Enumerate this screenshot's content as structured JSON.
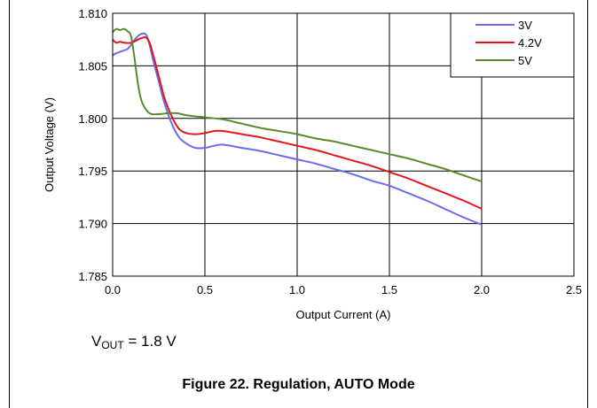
{
  "chart_data": {
    "type": "line",
    "title": "",
    "xlabel": "Output Current (A)",
    "ylabel": "Output Voltage (V)",
    "xlim": [
      0,
      2.5
    ],
    "ylim": [
      1.785,
      1.81
    ],
    "xticks": [
      0.0,
      0.5,
      1.0,
      1.5,
      2.0,
      2.5
    ],
    "xtick_labels": [
      "0.0",
      "0.5",
      "1.0",
      "1.5",
      "2.0",
      "2.5"
    ],
    "yticks": [
      1.785,
      1.79,
      1.795,
      1.8,
      1.805,
      1.81
    ],
    "ytick_labels": [
      "1.785",
      "1.790",
      "1.795",
      "1.800",
      "1.805",
      "1.810"
    ],
    "grid": true,
    "legend_position": "top-right",
    "series": [
      {
        "name": "3V",
        "color": "#6b6bf0",
        "points": [
          [
            0.0,
            1.806
          ],
          [
            0.02,
            1.8062
          ],
          [
            0.05,
            1.8064
          ],
          [
            0.08,
            1.8066
          ],
          [
            0.1,
            1.807
          ],
          [
            0.12,
            1.8075
          ],
          [
            0.15,
            1.808
          ],
          [
            0.18,
            1.808
          ],
          [
            0.2,
            1.807
          ],
          [
            0.22,
            1.8055
          ],
          [
            0.25,
            1.8035
          ],
          [
            0.28,
            1.8015
          ],
          [
            0.32,
            1.7995
          ],
          [
            0.36,
            1.7982
          ],
          [
            0.4,
            1.7976
          ],
          [
            0.45,
            1.7972
          ],
          [
            0.5,
            1.7972
          ],
          [
            0.55,
            1.7974
          ],
          [
            0.6,
            1.7975
          ],
          [
            0.7,
            1.7972
          ],
          [
            0.8,
            1.7969
          ],
          [
            0.9,
            1.7965
          ],
          [
            1.0,
            1.7961
          ],
          [
            1.1,
            1.7957
          ],
          [
            1.2,
            1.7952
          ],
          [
            1.3,
            1.7947
          ],
          [
            1.4,
            1.7941
          ],
          [
            1.5,
            1.7936
          ],
          [
            1.6,
            1.7929
          ],
          [
            1.7,
            1.7922
          ],
          [
            1.8,
            1.7914
          ],
          [
            1.9,
            1.7906
          ],
          [
            2.0,
            1.7899
          ]
        ]
      },
      {
        "name": "4.2V",
        "color": "#e8131b",
        "points": [
          [
            0.0,
            1.8075
          ],
          [
            0.02,
            1.8072
          ],
          [
            0.04,
            1.8073
          ],
          [
            0.06,
            1.8072
          ],
          [
            0.1,
            1.8072
          ],
          [
            0.15,
            1.8076
          ],
          [
            0.18,
            1.8077
          ],
          [
            0.2,
            1.8072
          ],
          [
            0.22,
            1.806
          ],
          [
            0.25,
            1.804
          ],
          [
            0.28,
            1.802
          ],
          [
            0.32,
            1.8002
          ],
          [
            0.36,
            1.799
          ],
          [
            0.4,
            1.7986
          ],
          [
            0.45,
            1.7985
          ],
          [
            0.5,
            1.7986
          ],
          [
            0.55,
            1.7988
          ],
          [
            0.6,
            1.7988
          ],
          [
            0.7,
            1.7985
          ],
          [
            0.8,
            1.7982
          ],
          [
            0.9,
            1.7978
          ],
          [
            1.0,
            1.7974
          ],
          [
            1.1,
            1.797
          ],
          [
            1.2,
            1.7965
          ],
          [
            1.3,
            1.796
          ],
          [
            1.4,
            1.7955
          ],
          [
            1.5,
            1.7949
          ],
          [
            1.6,
            1.7943
          ],
          [
            1.7,
            1.7936
          ],
          [
            1.8,
            1.7929
          ],
          [
            1.9,
            1.7922
          ],
          [
            2.0,
            1.7914
          ]
        ]
      },
      {
        "name": "5V",
        "color": "#5a8a2a",
        "points": [
          [
            0.0,
            1.8082
          ],
          [
            0.02,
            1.8085
          ],
          [
            0.04,
            1.8084
          ],
          [
            0.06,
            1.8085
          ],
          [
            0.08,
            1.8083
          ],
          [
            0.1,
            1.8078
          ],
          [
            0.12,
            1.8055
          ],
          [
            0.14,
            1.803
          ],
          [
            0.16,
            1.8015
          ],
          [
            0.2,
            1.8005
          ],
          [
            0.25,
            1.8004
          ],
          [
            0.3,
            1.8005
          ],
          [
            0.35,
            1.8005
          ],
          [
            0.4,
            1.8003
          ],
          [
            0.5,
            1.8001
          ],
          [
            0.6,
            1.7999
          ],
          [
            0.7,
            1.7995
          ],
          [
            0.8,
            1.7991
          ],
          [
            0.9,
            1.7988
          ],
          [
            1.0,
            1.7985
          ],
          [
            1.1,
            1.7981
          ],
          [
            1.2,
            1.7978
          ],
          [
            1.3,
            1.7974
          ],
          [
            1.4,
            1.797
          ],
          [
            1.5,
            1.7966
          ],
          [
            1.6,
            1.7962
          ],
          [
            1.7,
            1.7957
          ],
          [
            1.8,
            1.7952
          ],
          [
            1.9,
            1.7946
          ],
          [
            2.0,
            1.794
          ]
        ]
      }
    ]
  },
  "conditions": {
    "prefix": "V",
    "subscript": "OUT",
    "value": " = 1.8 V"
  },
  "caption": "Figure 22. Regulation, AUTO Mode"
}
